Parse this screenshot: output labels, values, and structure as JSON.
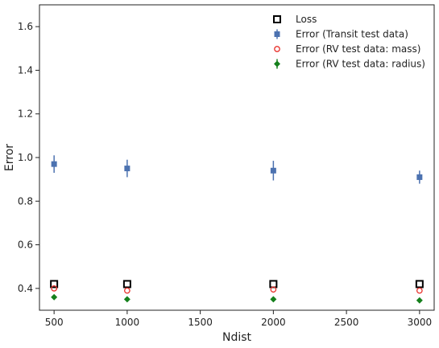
{
  "chart_data": {
    "type": "scatter",
    "xlabel": "Ndist",
    "ylabel": "Error",
    "xlim": [
      400,
      3100
    ],
    "ylim": [
      0.3,
      1.7
    ],
    "x_ticks": [
      500,
      1000,
      1500,
      2000,
      2500,
      3000
    ],
    "y_ticks": [
      0.4,
      0.6,
      0.8,
      1.0,
      1.2,
      1.4,
      1.6
    ],
    "x_tick_labels": [
      "500",
      "1000",
      "1500",
      "2000",
      "2500",
      "3000"
    ],
    "y_tick_labels": [
      "0.4",
      "0.6",
      "0.8",
      "1.0",
      "1.2",
      "1.4",
      "1.6"
    ],
    "grid": false,
    "legend_placement": "top-right",
    "series": [
      {
        "name": "Loss",
        "marker": "open-square",
        "color": "#000000",
        "x": [
          500,
          1000,
          2000,
          3000
        ],
        "y": [
          0.42,
          0.42,
          0.42,
          0.42
        ]
      },
      {
        "name": "Error (Transit test data)",
        "marker": "filled-square",
        "color": "#4c72b0",
        "x": [
          500,
          1000,
          2000,
          3000
        ],
        "y": [
          0.97,
          0.95,
          0.94,
          0.91
        ],
        "yerr": [
          0.04,
          0.04,
          0.045,
          0.03
        ]
      },
      {
        "name": "Error (RV test data: mass)",
        "marker": "open-circle",
        "color": "#e8302a",
        "x": [
          500,
          1000,
          2000,
          3000
        ],
        "y": [
          0.4,
          0.39,
          0.395,
          0.39
        ]
      },
      {
        "name": "Error (RV test data: radius)",
        "marker": "filled-diamond",
        "color": "#15801c",
        "x": [
          500,
          1000,
          2000,
          3000
        ],
        "y": [
          0.36,
          0.35,
          0.35,
          0.345
        ]
      }
    ]
  }
}
